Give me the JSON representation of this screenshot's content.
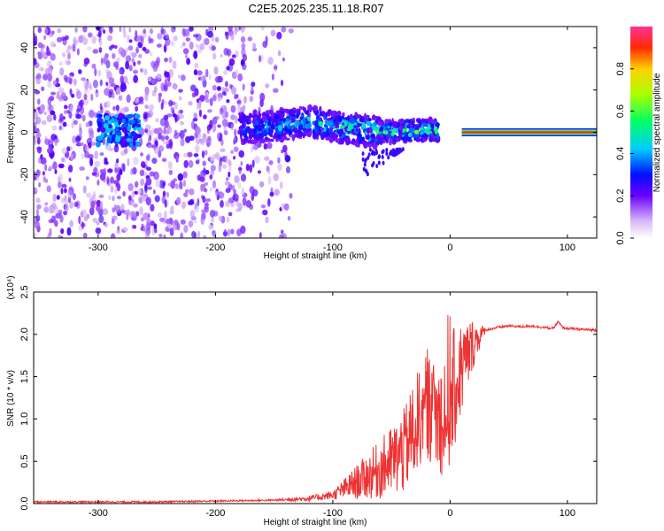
{
  "title": "C2E5.2025.235.11.18.R07",
  "chart_data": [
    {
      "type": "heatmap",
      "name": "spectrogram",
      "xlabel": "Height of straight line (km)",
      "ylabel": "Frequency (Hz)",
      "xlim": [
        -355,
        125
      ],
      "ylim": [
        -50,
        50
      ],
      "xticks": [
        -300,
        -200,
        -100,
        0,
        100
      ],
      "xtick_labels": [
        "-300",
        "-200",
        "-100",
        "0",
        "100"
      ],
      "yticks": [
        -40,
        -20,
        0,
        20,
        40
      ],
      "ytick_labels": [
        "-40",
        "-20",
        "0",
        "20",
        "40"
      ],
      "colorbar": {
        "label": "Normalized spectral amplitude",
        "range": [
          0,
          1
        ],
        "ticks": [
          0.0,
          0.2,
          0.4,
          0.6,
          0.8
        ],
        "tick_labels": [
          "0.0",
          "0.2",
          "0.4",
          "0.6",
          "0.8"
        ]
      },
      "features": {
        "noise_extent_km": [
          -355,
          -135
        ],
        "bright_blob_km": [
          -300,
          -265
        ],
        "drift_band": [
          {
            "x": -180,
            "f": 2
          },
          {
            "x": -150,
            "f": 3
          },
          {
            "x": -120,
            "f": 5
          },
          {
            "x": -90,
            "f": 2
          },
          {
            "x": -60,
            "f": 0
          },
          {
            "x": -30,
            "f": 1
          },
          {
            "x": -10,
            "f": 1
          }
        ],
        "line_start_km": 10,
        "line_frequency_hz": 0
      }
    },
    {
      "type": "line",
      "name": "snr",
      "xlabel": "Height of straight line (km)",
      "ylabel": "SNR (10 * v/v)",
      "scale_label": "(x10⁴)",
      "xlim": [
        -355,
        125
      ],
      "ylim": [
        0,
        2.5
      ],
      "xticks": [
        -300,
        -200,
        -100,
        0,
        100
      ],
      "xtick_labels": [
        "-300",
        "-200",
        "-100",
        "0",
        "100"
      ],
      "yticks": [
        0.0,
        0.5,
        1.0,
        1.5,
        2.0,
        2.5
      ],
      "ytick_labels": [
        "0.0",
        "0.5",
        "1.0",
        "1.5",
        "2.0",
        "2.5"
      ],
      "color": "#ee3333",
      "series": [
        {
          "name": "SNR",
          "x": [
            -355,
            -300,
            -250,
            -200,
            -150,
            -120,
            -100,
            -80,
            -60,
            -40,
            -30,
            -20,
            -15,
            -10,
            0,
            10,
            20,
            30,
            40,
            50,
            60,
            70,
            80,
            88,
            92,
            96,
            100,
            110,
            125
          ],
          "y": [
            0.02,
            0.02,
            0.02,
            0.03,
            0.04,
            0.06,
            0.1,
            0.25,
            0.4,
            0.6,
            0.9,
            1.2,
            1.1,
            1.0,
            1.2,
            1.6,
            1.9,
            2.05,
            2.08,
            2.1,
            2.09,
            2.1,
            2.08,
            2.07,
            2.15,
            2.08,
            2.07,
            2.06,
            2.05
          ]
        }
      ]
    }
  ]
}
